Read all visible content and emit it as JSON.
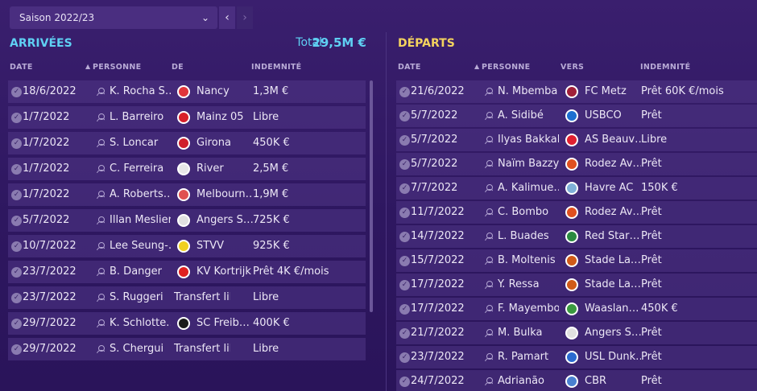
{
  "season": {
    "label": "Saison 2022/23",
    "prev": "‹",
    "next": "›"
  },
  "arrivals": {
    "title": "ARRIVÉES",
    "total_label": "Total",
    "total_value": "29,5M €",
    "headers": {
      "date": "DATE",
      "person": "PERSONNE",
      "from": "DE",
      "fee": "INDEMNITÉ"
    },
    "rows": [
      {
        "date": "18/6/2022",
        "person": "K. Rocha S…",
        "club": "Nancy",
        "fee": "1,3M €",
        "crest_color": "#e0353b"
      },
      {
        "date": "1/7/2022",
        "person": "L. Barreiro",
        "club": "Mainz 05",
        "fee": "Libre",
        "crest_color": "#d8202a"
      },
      {
        "date": "1/7/2022",
        "person": "S. Loncar",
        "club": "Girona",
        "fee": "450K €",
        "crest_color": "#d0202c"
      },
      {
        "date": "1/7/2022",
        "person": "C. Ferreira",
        "club": "River",
        "fee": "2,5M €",
        "crest_color": "#e8e8e8"
      },
      {
        "date": "1/7/2022",
        "person": "A. Roberts…",
        "club": "Melbourn…",
        "fee": "1,9M €",
        "crest_color": "#e05050"
      },
      {
        "date": "5/7/2022",
        "person": "Illan Meslier",
        "club": "Angers S…",
        "fee": "725K €",
        "crest_color": "#e0e0e0"
      },
      {
        "date": "10/7/2022",
        "person": "Lee Seung-…",
        "club": "STVV",
        "fee": "925K €",
        "crest_color": "#f0d020"
      },
      {
        "date": "23/7/2022",
        "person": "B. Danger",
        "club": "KV Kortrijk",
        "fee": "Prêt 4K €/mois",
        "crest_color": "#e02020"
      },
      {
        "date": "23/7/2022",
        "person": "S. Ruggeri",
        "club": "Transfert libre",
        "fee": "Libre",
        "crest_color": ""
      },
      {
        "date": "29/7/2022",
        "person": "K. Schlotte…",
        "club": "SC Freib…",
        "fee": "400K €",
        "crest_color": "#1a1a1a"
      },
      {
        "date": "29/7/2022",
        "person": "S. Chergui",
        "club": "Transfert libre",
        "fee": "Libre",
        "crest_color": ""
      }
    ]
  },
  "departures": {
    "title": "DÉPARTS",
    "headers": {
      "date": "DATE",
      "person": "PERSONNE",
      "to": "VERS",
      "fee": "INDEMNITÉ"
    },
    "rows": [
      {
        "date": "21/6/2022",
        "person": "N. Mbemba",
        "club": "FC Metz",
        "fee": "Prêt 60K €/mois",
        "crest_color": "#a0203a"
      },
      {
        "date": "5/7/2022",
        "person": "A. Sidibé",
        "club": "USBCO",
        "fee": "Prêt",
        "crest_color": "#1c6fd0"
      },
      {
        "date": "5/7/2022",
        "person": "Ilyas Bakkali",
        "club": "AS Beauv…",
        "fee": "Libre",
        "crest_color": "#e02030"
      },
      {
        "date": "5/7/2022",
        "person": "Naïm Bazzy",
        "club": "Rodez Av…",
        "fee": "Prêt",
        "crest_color": "#e05020"
      },
      {
        "date": "7/7/2022",
        "person": "A. Kalimue…",
        "club": "Havre AC",
        "fee": "150K €",
        "crest_color": "#7fb0d8"
      },
      {
        "date": "11/7/2022",
        "person": "C. Bombo",
        "club": "Rodez Av…",
        "fee": "Prêt",
        "crest_color": "#e05020"
      },
      {
        "date": "14/7/2022",
        "person": "L. Buades",
        "club": "Red Star…",
        "fee": "Prêt",
        "crest_color": "#2a8a40"
      },
      {
        "date": "15/7/2022",
        "person": "B. Moltenis",
        "club": "Stade La…",
        "fee": "Prêt",
        "crest_color": "#d05a18"
      },
      {
        "date": "17/7/2022",
        "person": "Y. Ressa",
        "club": "Stade La…",
        "fee": "Prêt",
        "crest_color": "#d05a18"
      },
      {
        "date": "17/7/2022",
        "person": "F. Mayembo",
        "club": "Waaslan…",
        "fee": "450K €",
        "crest_color": "#3a9a40"
      },
      {
        "date": "21/7/2022",
        "person": "M. Bulka",
        "club": "Angers S…",
        "fee": "Prêt",
        "crest_color": "#e0e0e0"
      },
      {
        "date": "23/7/2022",
        "person": "R. Pamart",
        "club": "USL Dunk…",
        "fee": "Prêt",
        "crest_color": "#2a6ad0"
      },
      {
        "date": "24/7/2022",
        "person": "Adrianão",
        "club": "CBR",
        "fee": "Prêt",
        "crest_color": "#4a80d0"
      }
    ]
  }
}
